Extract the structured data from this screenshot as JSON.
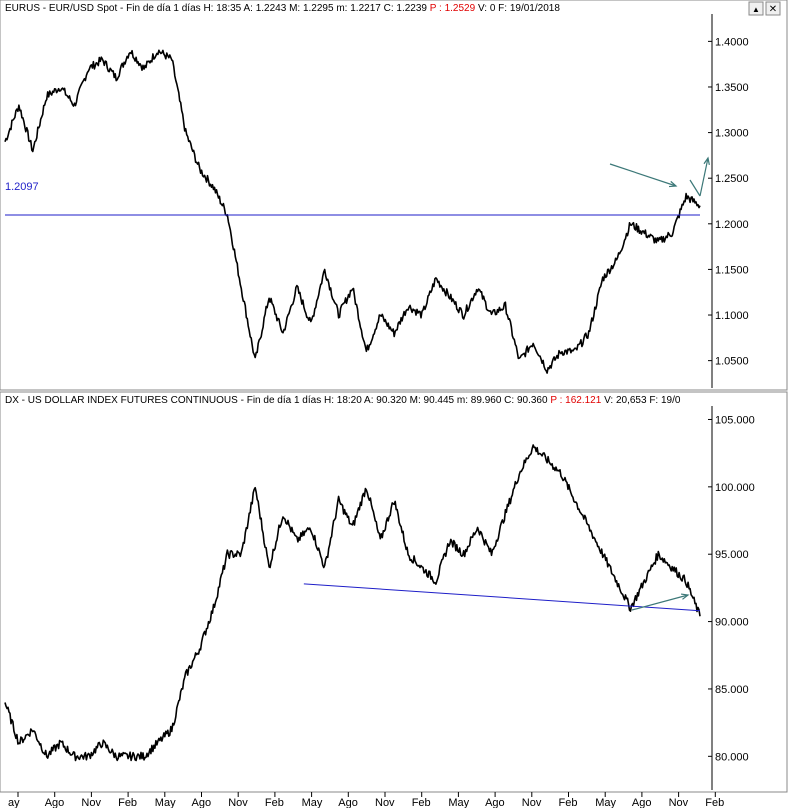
{
  "panels": {
    "top": {
      "symbol": "EURUS",
      "description": "EUR/USD Spot",
      "timeframe": "Fin de día 1 días",
      "h": "H: 18:35",
      "a": "A: 1.2243",
      "m_high": "M: 1.2295",
      "m_low": "m: 1.2217",
      "c": "C: 1.2239",
      "p": "P : 1.2529",
      "v": "V: 0",
      "f": "F: 19/01/2018",
      "level_label": "1.2097"
    },
    "bottom": {
      "symbol": "DX",
      "description": "US DOLLAR INDEX FUTURES CONTINUOUS",
      "timeframe": "Fin de día 1 días",
      "h": "H: 18:20",
      "a": "A: 90.320",
      "m_high": "M: 90.445",
      "m_low": "m: 89.960",
      "c": "C: 90.360",
      "p": "P : 162.121",
      "v": "V: 20,653",
      "f": "F: 19/0"
    }
  },
  "window_buttons": {
    "up": "▲",
    "close": "✕"
  },
  "x_axis_labels": [
    "ay",
    "Ago",
    "Nov",
    "Feb",
    "May",
    "Ago",
    "Nov",
    "Feb",
    "May",
    "Ago",
    "Nov",
    "Feb",
    "May",
    "Ago",
    "Nov",
    "Feb",
    "May",
    "Ago",
    "Nov",
    "Feb"
  ],
  "colors": {
    "price_line": "#000000",
    "level_line": "#1e1ec8",
    "arrow": "#3c7878"
  },
  "chart_data": [
    {
      "type": "line",
      "title": "EURUS - EUR/USD Spot",
      "ylim": [
        1.02,
        1.43
      ],
      "yticks": [
        1.05,
        1.1,
        1.15,
        1.2,
        1.25,
        1.3,
        1.35,
        1.4
      ],
      "ytick_labels": [
        "1.0500",
        "1.1000",
        "1.1500",
        "1.2000",
        "1.2500",
        "1.3000",
        "1.3500",
        "1.4000"
      ],
      "horizontal_level": 1.2097,
      "series": [
        {
          "x": [
            0,
            2,
            4,
            6,
            8,
            10,
            12,
            14,
            16,
            18,
            20,
            22,
            24,
            26,
            28,
            30,
            32,
            34,
            36,
            38,
            40,
            42,
            44,
            46,
            48,
            50,
            52,
            54,
            56,
            58,
            60,
            62,
            64,
            66,
            68,
            70,
            72,
            74,
            76,
            78,
            80,
            82,
            84,
            86,
            88,
            90,
            92,
            94,
            96,
            98,
            100
          ],
          "values": [
            1.29,
            1.33,
            1.28,
            1.34,
            1.35,
            1.33,
            1.37,
            1.38,
            1.36,
            1.39,
            1.37,
            1.39,
            1.38,
            1.3,
            1.26,
            1.24,
            1.21,
            1.13,
            1.05,
            1.12,
            1.08,
            1.13,
            1.09,
            1.15,
            1.1,
            1.13,
            1.06,
            1.1,
            1.08,
            1.11,
            1.1,
            1.14,
            1.12,
            1.1,
            1.13,
            1.1,
            1.11,
            1.05,
            1.07,
            1.04,
            1.06,
            1.06,
            1.08,
            1.14,
            1.16,
            1.2,
            1.19,
            1.18,
            1.19,
            1.23,
            1.22
          ]
        }
      ]
    },
    {
      "type": "line",
      "title": "DX - US DOLLAR INDEX FUTURES CONTINUOUS",
      "ylim": [
        77.5,
        106
      ],
      "yticks": [
        80,
        85,
        90,
        95,
        100,
        105
      ],
      "ytick_labels": [
        "80.000",
        "85.000",
        "90.000",
        "95.000",
        "100.000",
        "105.000"
      ],
      "trendline": {
        "from": [
          43,
          92.8
        ],
        "to": [
          100,
          90.8
        ]
      },
      "series": [
        {
          "x": [
            0,
            2,
            4,
            6,
            8,
            10,
            12,
            14,
            16,
            18,
            20,
            22,
            24,
            26,
            28,
            30,
            32,
            34,
            36,
            38,
            40,
            42,
            44,
            46,
            48,
            50,
            52,
            54,
            56,
            58,
            60,
            62,
            64,
            66,
            68,
            70,
            72,
            74,
            76,
            78,
            80,
            82,
            84,
            86,
            88,
            90,
            92,
            94,
            96,
            98,
            100
          ],
          "values": [
            84,
            81,
            82,
            80,
            81,
            80,
            80,
            81,
            80,
            80,
            80,
            81,
            82,
            86,
            88,
            91,
            95,
            95,
            100,
            94,
            98,
            96,
            97,
            94,
            99,
            97,
            100,
            96,
            99,
            95,
            94,
            93,
            96,
            95,
            97,
            95,
            98,
            101,
            103,
            102,
            101,
            99,
            97,
            95,
            93,
            91,
            93,
            95,
            94,
            93,
            90.4
          ]
        }
      ]
    }
  ]
}
